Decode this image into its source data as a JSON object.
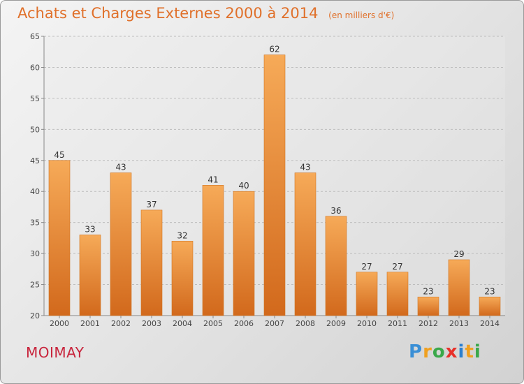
{
  "header": {
    "title": "Achats et Charges Externes 2000 à 2014",
    "subtitle": "(en milliers d'€)"
  },
  "footer": {
    "commune": "MOIMAY",
    "logo": [
      "P",
      "r",
      "o",
      "x",
      "i",
      "t",
      "i"
    ],
    "logo_colors": [
      "#3a8fd6",
      "#f0a020",
      "#3aa84a",
      "#e8302a",
      "#2a7fd0",
      "#f0a020",
      "#3aa84a"
    ]
  },
  "chart_data": {
    "type": "bar",
    "title": "Achats et Charges Externes 2000 à 2014",
    "subtitle": "(en milliers d'€)",
    "categories": [
      "2000",
      "2001",
      "2002",
      "2003",
      "2004",
      "2005",
      "2006",
      "2007",
      "2008",
      "2009",
      "2010",
      "2011",
      "2012",
      "2013",
      "2014"
    ],
    "values": [
      45,
      33,
      43,
      37,
      32,
      41,
      40,
      62,
      43,
      36,
      27,
      27,
      23,
      29,
      23
    ],
    "ylim": [
      20,
      65
    ],
    "yticks": [
      20,
      25,
      30,
      35,
      40,
      45,
      50,
      55,
      60,
      65
    ],
    "grid": true,
    "bar_color": "#f28c2a",
    "bar_color_light": "#f6aa58",
    "bar_color_dark": "#d2691c"
  }
}
